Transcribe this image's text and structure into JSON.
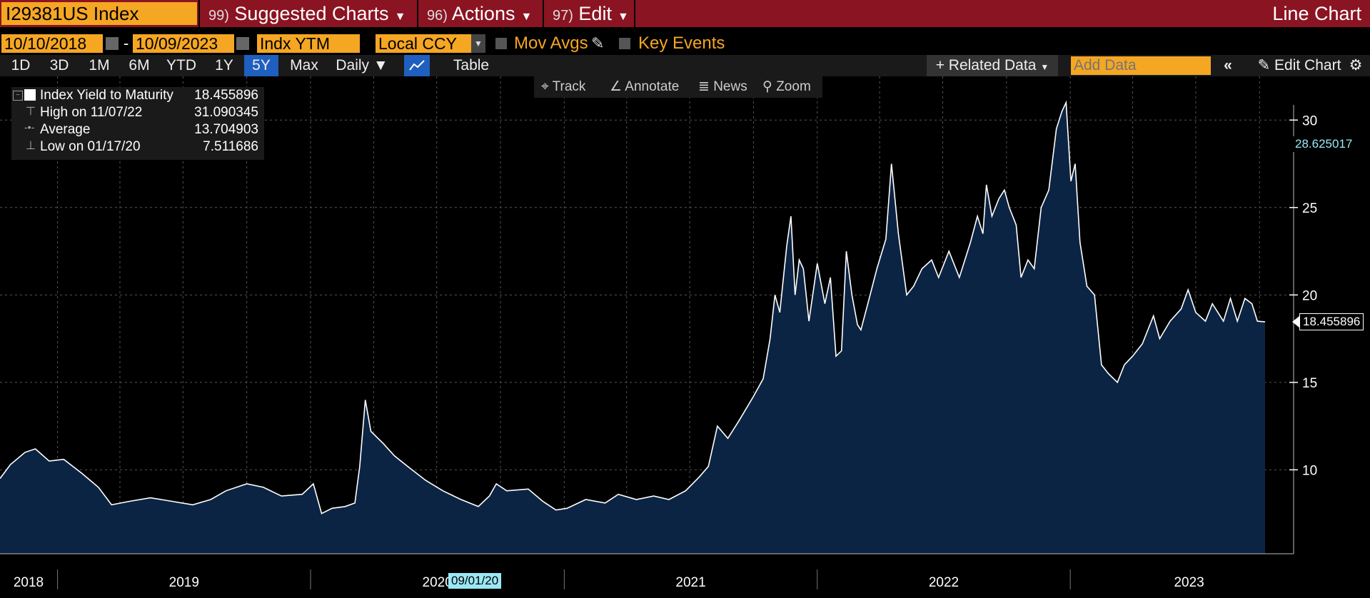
{
  "header": {
    "ticker": "I29381US Index",
    "menus": [
      {
        "num": "99)",
        "label": "Suggested Charts"
      },
      {
        "num": "96)",
        "label": "Actions"
      },
      {
        "num": "97)",
        "label": "Edit"
      }
    ],
    "chart_type": "Line Chart"
  },
  "controls": {
    "start_date": "10/10/2018",
    "end_date": "10/09/2023",
    "field": "Indx YTM",
    "currency": "Local CCY",
    "mov_avgs": "Mov Avgs",
    "key_events": "Key Events",
    "ranges": [
      "1D",
      "3D",
      "1M",
      "6M",
      "YTD",
      "1Y",
      "5Y",
      "Max"
    ],
    "selected_range": "5Y",
    "frequency": "Daily ▼",
    "table": "Table",
    "related_data": "+ Related Data",
    "add_data_placeholder": "Add Data",
    "edit_chart": "Edit Chart"
  },
  "tools": [
    "Track",
    "Annotate",
    "News",
    "Zoom"
  ],
  "legend": {
    "series": "Index Yield to Maturity",
    "series_value": "18.455896",
    "high_label": "High on 11/07/22",
    "high_value": "31.090345",
    "avg_label": "Average",
    "avg_value": "13.704903",
    "low_label": "Low on 01/17/20",
    "low_value": "7.511686"
  },
  "colors": {
    "header": "#8b1422",
    "field": "#f5a623",
    "fill": "#0c2444",
    "selected": "#1f5fbf",
    "cursor_tag": "#9be8f5"
  },
  "chart_data": {
    "type": "area",
    "x_start": "10/10/2018",
    "x_end": "10/09/2023",
    "ylim": [
      5.2,
      32.5
    ],
    "yticks": [
      10,
      15,
      20,
      25,
      30
    ],
    "grid": true,
    "last_value_label": "18.455896",
    "cursor_value_label": "28.625017",
    "cursor_date_label": "09/01/20",
    "x_labels": [
      "2018",
      "2019",
      "2020",
      "2021",
      "2022",
      "2023"
    ],
    "series": [
      {
        "name": "Index Yield to Maturity",
        "points": [
          [
            "2018-10-10",
            9.5
          ],
          [
            "2018-10-25",
            10.3
          ],
          [
            "2018-11-15",
            11.0
          ],
          [
            "2018-11-30",
            11.2
          ],
          [
            "2018-12-20",
            10.5
          ],
          [
            "2019-01-10",
            10.6
          ],
          [
            "2019-02-05",
            9.8
          ],
          [
            "2019-03-01",
            9.0
          ],
          [
            "2019-03-20",
            8.0
          ],
          [
            "2019-04-15",
            8.2
          ],
          [
            "2019-05-15",
            8.4
          ],
          [
            "2019-06-15",
            8.2
          ],
          [
            "2019-07-15",
            8.0
          ],
          [
            "2019-08-10",
            8.3
          ],
          [
            "2019-09-01",
            8.8
          ],
          [
            "2019-10-01",
            9.2
          ],
          [
            "2019-10-25",
            9.0
          ],
          [
            "2019-11-20",
            8.5
          ],
          [
            "2019-12-20",
            8.6
          ],
          [
            "2020-01-05",
            9.2
          ],
          [
            "2020-01-17",
            7.5
          ],
          [
            "2020-02-01",
            7.8
          ],
          [
            "2020-02-20",
            7.9
          ],
          [
            "2020-03-05",
            8.1
          ],
          [
            "2020-03-12",
            10.2
          ],
          [
            "2020-03-20",
            14.0
          ],
          [
            "2020-03-28",
            12.2
          ],
          [
            "2020-04-15",
            11.5
          ],
          [
            "2020-05-01",
            10.8
          ],
          [
            "2020-05-20",
            10.2
          ],
          [
            "2020-06-15",
            9.4
          ],
          [
            "2020-07-10",
            8.8
          ],
          [
            "2020-08-05",
            8.3
          ],
          [
            "2020-08-30",
            7.9
          ],
          [
            "2020-09-15",
            8.5
          ],
          [
            "2020-09-25",
            9.2
          ],
          [
            "2020-10-10",
            8.8
          ],
          [
            "2020-11-10",
            8.9
          ],
          [
            "2020-12-01",
            8.2
          ],
          [
            "2020-12-20",
            7.7
          ],
          [
            "2021-01-05",
            7.8
          ],
          [
            "2021-02-01",
            8.3
          ],
          [
            "2021-03-01",
            8.1
          ],
          [
            "2021-03-20",
            8.6
          ],
          [
            "2021-04-15",
            8.3
          ],
          [
            "2021-05-10",
            8.5
          ],
          [
            "2021-06-01",
            8.3
          ],
          [
            "2021-06-25",
            8.8
          ],
          [
            "2021-07-15",
            9.6
          ],
          [
            "2021-07-28",
            10.2
          ],
          [
            "2021-08-10",
            12.5
          ],
          [
            "2021-08-25",
            11.8
          ],
          [
            "2021-09-10",
            12.8
          ],
          [
            "2021-10-01",
            14.2
          ],
          [
            "2021-10-15",
            15.2
          ],
          [
            "2021-10-25",
            17.5
          ],
          [
            "2021-11-01",
            20.0
          ],
          [
            "2021-11-08",
            19.0
          ],
          [
            "2021-11-18",
            22.8
          ],
          [
            "2021-11-24",
            24.5
          ],
          [
            "2021-11-30",
            20.0
          ],
          [
            "2021-12-06",
            22.0
          ],
          [
            "2021-12-12",
            21.5
          ],
          [
            "2021-12-20",
            18.5
          ],
          [
            "2022-01-01",
            21.8
          ],
          [
            "2022-01-12",
            19.5
          ],
          [
            "2022-01-20",
            21.0
          ],
          [
            "2022-01-28",
            16.5
          ],
          [
            "2022-02-05",
            16.8
          ],
          [
            "2022-02-12",
            22.5
          ],
          [
            "2022-02-20",
            20.0
          ],
          [
            "2022-02-28",
            18.3
          ],
          [
            "2022-03-05",
            18.0
          ],
          [
            "2022-03-15",
            19.5
          ],
          [
            "2022-03-28",
            21.5
          ],
          [
            "2022-04-10",
            23.2
          ],
          [
            "2022-04-18",
            27.5
          ],
          [
            "2022-04-28",
            23.5
          ],
          [
            "2022-05-10",
            20.0
          ],
          [
            "2022-05-20",
            20.5
          ],
          [
            "2022-06-01",
            21.5
          ],
          [
            "2022-06-15",
            22.0
          ],
          [
            "2022-06-25",
            21.0
          ],
          [
            "2022-07-10",
            22.5
          ],
          [
            "2022-07-25",
            21.0
          ],
          [
            "2022-08-10",
            23.0
          ],
          [
            "2022-08-20",
            24.5
          ],
          [
            "2022-08-28",
            23.5
          ],
          [
            "2022-09-02",
            26.3
          ],
          [
            "2022-09-10",
            24.5
          ],
          [
            "2022-09-20",
            25.5
          ],
          [
            "2022-09-28",
            26.0
          ],
          [
            "2022-10-05",
            25.0
          ],
          [
            "2022-10-15",
            24.0
          ],
          [
            "2022-10-22",
            21.0
          ],
          [
            "2022-11-01",
            22.0
          ],
          [
            "2022-11-10",
            21.5
          ],
          [
            "2022-11-20",
            25.0
          ],
          [
            "2022-12-01",
            26.0
          ],
          [
            "2022-12-12",
            29.5
          ],
          [
            "2022-12-20",
            30.5
          ],
          [
            "2022-12-26",
            31.0
          ],
          [
            "2023-01-02",
            26.5
          ],
          [
            "2023-01-08",
            27.5
          ],
          [
            "2023-01-15",
            23.0
          ],
          [
            "2023-01-25",
            20.5
          ],
          [
            "2023-02-05",
            20.0
          ],
          [
            "2023-02-15",
            16.0
          ],
          [
            "2023-02-25",
            15.5
          ],
          [
            "2023-03-10",
            15.0
          ],
          [
            "2023-03-20",
            16.0
          ],
          [
            "2023-04-01",
            16.5
          ],
          [
            "2023-04-15",
            17.2
          ],
          [
            "2023-05-01",
            18.8
          ],
          [
            "2023-05-10",
            17.5
          ],
          [
            "2023-05-25",
            18.5
          ],
          [
            "2023-06-10",
            19.2
          ],
          [
            "2023-06-20",
            20.3
          ],
          [
            "2023-07-01",
            19.0
          ],
          [
            "2023-07-15",
            18.5
          ],
          [
            "2023-07-25",
            19.5
          ],
          [
            "2023-08-10",
            18.5
          ],
          [
            "2023-08-20",
            19.8
          ],
          [
            "2023-08-30",
            18.5
          ],
          [
            "2023-09-10",
            19.8
          ],
          [
            "2023-09-20",
            19.5
          ],
          [
            "2023-09-28",
            18.5
          ],
          [
            "2023-10-09",
            18.46
          ]
        ]
      }
    ]
  }
}
